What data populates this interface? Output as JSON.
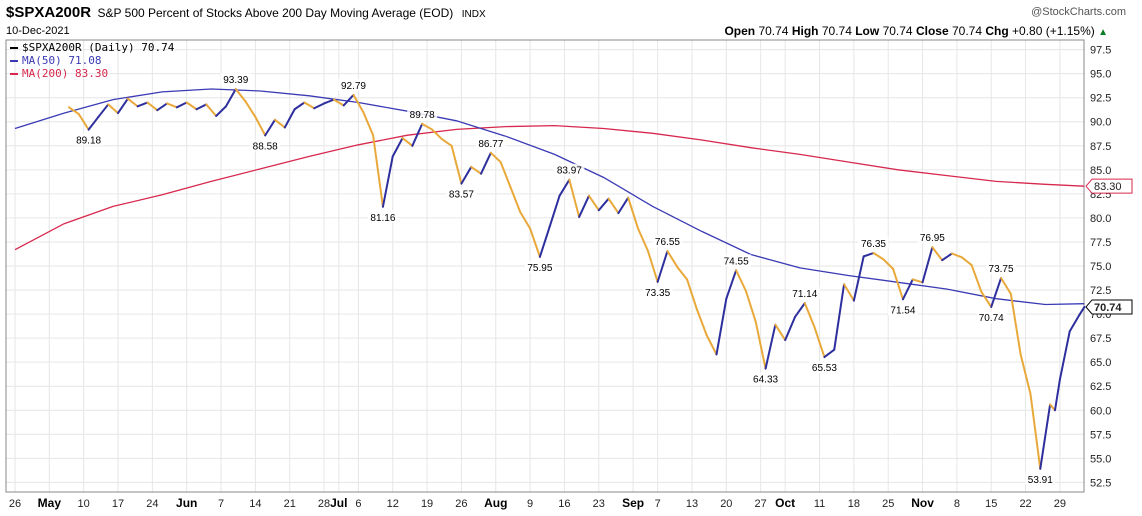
{
  "header": {
    "symbol": "$SPXA200R",
    "description": "S&P 500 Percent of Stocks Above 200 Day Moving Average (EOD)",
    "exchange": "INDX",
    "credit": "@StockCharts.com",
    "date": "10-Dec-2021",
    "open_label": "Open",
    "open": "70.74",
    "high_label": "High",
    "high": "70.74",
    "low_label": "Low",
    "low": "70.74",
    "close_label": "Close",
    "close": "70.74",
    "chg_label": "Chg",
    "chg": "+0.80 (+1.15%)"
  },
  "legend": {
    "main": "$SPXA200R (Daily) 70.74",
    "ma50": "MA(50) 71.08",
    "ma200": "MA(200) 83.30"
  },
  "colors": {
    "up": "#2d2f9e",
    "down": "#e8a93a",
    "ma50": "#3a3ab5",
    "ma200": "#d7284d",
    "grid": "#e6e6e6"
  },
  "chart_data": {
    "type": "line",
    "ylim": [
      51.5,
      98.5
    ],
    "y_ticks": [
      52.5,
      55.0,
      57.5,
      60.0,
      62.5,
      65.0,
      67.5,
      70.0,
      72.5,
      75.0,
      77.5,
      80.0,
      82.5,
      85.0,
      87.5,
      90.0,
      92.5,
      95.0,
      97.5
    ],
    "y_tick_labels": [
      "52.5",
      "55.0",
      "57.5",
      "60.0",
      "62.5",
      "65.0",
      "67.5",
      "70.0",
      "72.5",
      "75.0",
      "77.5",
      "80.0",
      "82.5",
      "85.0",
      "87.5",
      "90.0",
      "92.5",
      "95.0",
      "97.5"
    ],
    "x_range": [
      0,
      212
    ],
    "x_ticks": [
      {
        "x": 0,
        "label": "26",
        "month": false
      },
      {
        "x": 7,
        "label": "May",
        "month": true
      },
      {
        "x": 14,
        "label": "10",
        "month": false
      },
      {
        "x": 21,
        "label": "17",
        "month": false
      },
      {
        "x": 28,
        "label": "24",
        "month": false
      },
      {
        "x": 35,
        "label": "Jun",
        "month": true
      },
      {
        "x": 42,
        "label": "7",
        "month": false
      },
      {
        "x": 49,
        "label": "14",
        "month": false
      },
      {
        "x": 56,
        "label": "21",
        "month": false
      },
      {
        "x": 63,
        "label": "28",
        "month": false
      },
      {
        "x": 66,
        "label": "Jul",
        "month": true
      },
      {
        "x": 70,
        "label": "6",
        "month": false
      },
      {
        "x": 77,
        "label": "12",
        "month": false
      },
      {
        "x": 84,
        "label": "19",
        "month": false
      },
      {
        "x": 91,
        "label": "26",
        "month": false
      },
      {
        "x": 98,
        "label": "Aug",
        "month": true
      },
      {
        "x": 105,
        "label": "9",
        "month": false
      },
      {
        "x": 112,
        "label": "16",
        "month": false
      },
      {
        "x": 119,
        "label": "23",
        "month": false
      },
      {
        "x": 126,
        "label": "Sep",
        "month": true
      },
      {
        "x": 131,
        "label": "7",
        "month": false
      },
      {
        "x": 138,
        "label": "13",
        "month": false
      },
      {
        "x": 145,
        "label": "20",
        "month": false
      },
      {
        "x": 152,
        "label": "27",
        "month": false
      },
      {
        "x": 157,
        "label": "Oct",
        "month": true
      },
      {
        "x": 164,
        "label": "11",
        "month": false
      },
      {
        "x": 171,
        "label": "18",
        "month": false
      },
      {
        "x": 178,
        "label": "25",
        "month": false
      },
      {
        "x": 185,
        "label": "Nov",
        "month": true
      },
      {
        "x": 192,
        "label": "8",
        "month": false
      },
      {
        "x": 199,
        "label": "15",
        "month": false
      },
      {
        "x": 206,
        "label": "22",
        "month": false
      },
      {
        "x": 213,
        "label": "29",
        "month": false
      }
    ],
    "series": [
      {
        "name": "$SPXA200R (Daily)",
        "points": [
          [
            11,
            91.5
          ],
          [
            13,
            90.8
          ],
          [
            15,
            89.18
          ],
          [
            17,
            90.5
          ],
          [
            19,
            91.8
          ],
          [
            21,
            90.9
          ],
          [
            23,
            92.4
          ],
          [
            25,
            91.6
          ],
          [
            27,
            92.0
          ],
          [
            29,
            91.2
          ],
          [
            31,
            91.9
          ],
          [
            33,
            91.5
          ],
          [
            35,
            92.0
          ],
          [
            37,
            91.3
          ],
          [
            39,
            91.8
          ],
          [
            41,
            90.6
          ],
          [
            43,
            91.6
          ],
          [
            45,
            93.39
          ],
          [
            47,
            92.1
          ],
          [
            49,
            90.5
          ],
          [
            51,
            88.58
          ],
          [
            53,
            90.2
          ],
          [
            55,
            89.4
          ],
          [
            57,
            91.3
          ],
          [
            59,
            92.0
          ],
          [
            61,
            91.4
          ],
          [
            63,
            91.9
          ],
          [
            65,
            92.3
          ],
          [
            67,
            91.7
          ],
          [
            69,
            92.79
          ],
          [
            71,
            91.0
          ],
          [
            73,
            88.6
          ],
          [
            75,
            81.16
          ],
          [
            77,
            86.4
          ],
          [
            79,
            88.3
          ],
          [
            81,
            87.5
          ],
          [
            83,
            89.78
          ],
          [
            85,
            89.2
          ],
          [
            87,
            88.2
          ],
          [
            89,
            87.5
          ],
          [
            91,
            83.57
          ],
          [
            93,
            85.3
          ],
          [
            95,
            84.6
          ],
          [
            97,
            86.77
          ],
          [
            99,
            85.8
          ],
          [
            101,
            83.2
          ],
          [
            103,
            80.6
          ],
          [
            105,
            78.9
          ],
          [
            107,
            75.95
          ],
          [
            109,
            79.1
          ],
          [
            111,
            82.3
          ],
          [
            113,
            83.97
          ],
          [
            115,
            80.1
          ],
          [
            117,
            82.3
          ],
          [
            119,
            80.8
          ],
          [
            121,
            82.0
          ],
          [
            123,
            80.5
          ],
          [
            125,
            82.1
          ],
          [
            127,
            78.9
          ],
          [
            129,
            76.6
          ],
          [
            131,
            73.35
          ],
          [
            133,
            76.55
          ],
          [
            135,
            74.9
          ],
          [
            137,
            73.6
          ],
          [
            139,
            70.5
          ],
          [
            141,
            67.8
          ],
          [
            143,
            65.8
          ],
          [
            145,
            71.6
          ],
          [
            147,
            74.55
          ],
          [
            149,
            72.4
          ],
          [
            151,
            69.2
          ],
          [
            153,
            64.33
          ],
          [
            155,
            68.9
          ],
          [
            157,
            67.3
          ],
          [
            159,
            69.7
          ],
          [
            161,
            71.14
          ],
          [
            163,
            68.6
          ],
          [
            165,
            65.53
          ],
          [
            167,
            66.3
          ],
          [
            169,
            73.1
          ],
          [
            171,
            71.4
          ],
          [
            173,
            76.0
          ],
          [
            175,
            76.35
          ],
          [
            177,
            75.7
          ],
          [
            179,
            74.7
          ],
          [
            181,
            71.54
          ],
          [
            183,
            73.6
          ],
          [
            185,
            73.3
          ],
          [
            187,
            76.95
          ],
          [
            189,
            75.6
          ],
          [
            191,
            76.3
          ],
          [
            193,
            75.9
          ],
          [
            195,
            75.1
          ],
          [
            197,
            72.3
          ],
          [
            199,
            70.74
          ],
          [
            201,
            73.75
          ],
          [
            203,
            72.1
          ],
          [
            205,
            65.8
          ],
          [
            207,
            61.7
          ],
          [
            209,
            53.91
          ],
          [
            211,
            60.6
          ],
          [
            212,
            60.0
          ],
          [
            213,
            63.2
          ],
          [
            215,
            68.2
          ],
          [
            217,
            69.94
          ],
          [
            218,
            70.74
          ]
        ]
      },
      {
        "name": "MA(50)",
        "points": [
          [
            0,
            89.3
          ],
          [
            10,
            90.9
          ],
          [
            20,
            92.3
          ],
          [
            30,
            93.1
          ],
          [
            40,
            93.4
          ],
          [
            50,
            93.2
          ],
          [
            60,
            92.7
          ],
          [
            70,
            92.0
          ],
          [
            80,
            91.1
          ],
          [
            90,
            90.1
          ],
          [
            100,
            88.5
          ],
          [
            110,
            86.6
          ],
          [
            120,
            84.2
          ],
          [
            130,
            81.2
          ],
          [
            140,
            78.6
          ],
          [
            150,
            76.2
          ],
          [
            160,
            74.8
          ],
          [
            170,
            74.0
          ],
          [
            180,
            73.3
          ],
          [
            190,
            72.6
          ],
          [
            200,
            71.6
          ],
          [
            210,
            71.0
          ],
          [
            218,
            71.08
          ]
        ]
      },
      {
        "name": "MA(200)",
        "points": [
          [
            0,
            76.7
          ],
          [
            10,
            79.4
          ],
          [
            20,
            81.2
          ],
          [
            30,
            82.4
          ],
          [
            40,
            83.8
          ],
          [
            50,
            85.1
          ],
          [
            60,
            86.4
          ],
          [
            70,
            87.6
          ],
          [
            80,
            88.6
          ],
          [
            90,
            89.2
          ],
          [
            100,
            89.5
          ],
          [
            110,
            89.6
          ],
          [
            120,
            89.3
          ],
          [
            130,
            88.8
          ],
          [
            140,
            88.1
          ],
          [
            150,
            87.3
          ],
          [
            160,
            86.6
          ],
          [
            170,
            85.8
          ],
          [
            180,
            85.0
          ],
          [
            190,
            84.4
          ],
          [
            200,
            83.8
          ],
          [
            210,
            83.5
          ],
          [
            218,
            83.3
          ]
        ]
      }
    ],
    "annotations": [
      {
        "x": 15,
        "y": 89.18,
        "text": "89.18",
        "pos": "below"
      },
      {
        "x": 45,
        "y": 93.39,
        "text": "93.39",
        "pos": "above"
      },
      {
        "x": 51,
        "y": 88.58,
        "text": "88.58",
        "pos": "below"
      },
      {
        "x": 69,
        "y": 92.79,
        "text": "92.79",
        "pos": "above"
      },
      {
        "x": 75,
        "y": 81.16,
        "text": "81.16",
        "pos": "below"
      },
      {
        "x": 83,
        "y": 89.78,
        "text": "89.78",
        "pos": "above"
      },
      {
        "x": 91,
        "y": 83.57,
        "text": "83.57",
        "pos": "below"
      },
      {
        "x": 97,
        "y": 86.77,
        "text": "86.77",
        "pos": "above"
      },
      {
        "x": 107,
        "y": 75.95,
        "text": "75.95",
        "pos": "below"
      },
      {
        "x": 113,
        "y": 83.97,
        "text": "83.97",
        "pos": "above"
      },
      {
        "x": 131,
        "y": 73.35,
        "text": "73.35",
        "pos": "below"
      },
      {
        "x": 133,
        "y": 76.55,
        "text": "76.55",
        "pos": "above"
      },
      {
        "x": 147,
        "y": 74.55,
        "text": "74.55",
        "pos": "above"
      },
      {
        "x": 153,
        "y": 64.33,
        "text": "64.33",
        "pos": "below"
      },
      {
        "x": 161,
        "y": 71.14,
        "text": "71.14",
        "pos": "above"
      },
      {
        "x": 165,
        "y": 65.53,
        "text": "65.53",
        "pos": "below"
      },
      {
        "x": 175,
        "y": 76.35,
        "text": "76.35",
        "pos": "above"
      },
      {
        "x": 181,
        "y": 71.54,
        "text": "71.54",
        "pos": "below"
      },
      {
        "x": 187,
        "y": 76.95,
        "text": "76.95",
        "pos": "above"
      },
      {
        "x": 199,
        "y": 70.74,
        "text": "70.74",
        "pos": "below"
      },
      {
        "x": 201,
        "y": 73.75,
        "text": "73.75",
        "pos": "above"
      },
      {
        "x": 209,
        "y": 53.91,
        "text": "53.91",
        "pos": "below"
      }
    ],
    "right_markers": [
      {
        "y": 83.3,
        "text": "83.30",
        "color": "#d7284d",
        "bold": false
      },
      {
        "y": 70.74,
        "text": "70.74",
        "color": "#000000",
        "bold": true
      }
    ],
    "grid": true
  }
}
